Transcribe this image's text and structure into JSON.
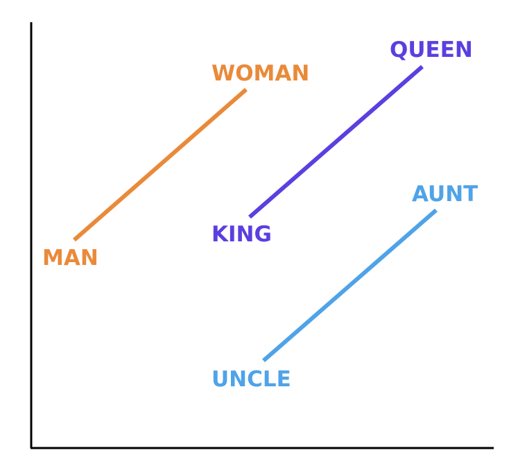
{
  "colors": {
    "axis": "#000000",
    "gender_pair_man_woman": "#E98A3A",
    "gender_pair_king_queen": "#5B3FE0",
    "gender_pair_uncle_aunt": "#4FA3E8"
  },
  "pairs": [
    {
      "from_label": "MAN",
      "to_label": "WOMAN",
      "color": "#E98A3A"
    },
    {
      "from_label": "KING",
      "to_label": "QUEEN",
      "color": "#5B3FE0"
    },
    {
      "from_label": "UNCLE",
      "to_label": "AUNT",
      "color": "#4FA3E8"
    }
  ]
}
